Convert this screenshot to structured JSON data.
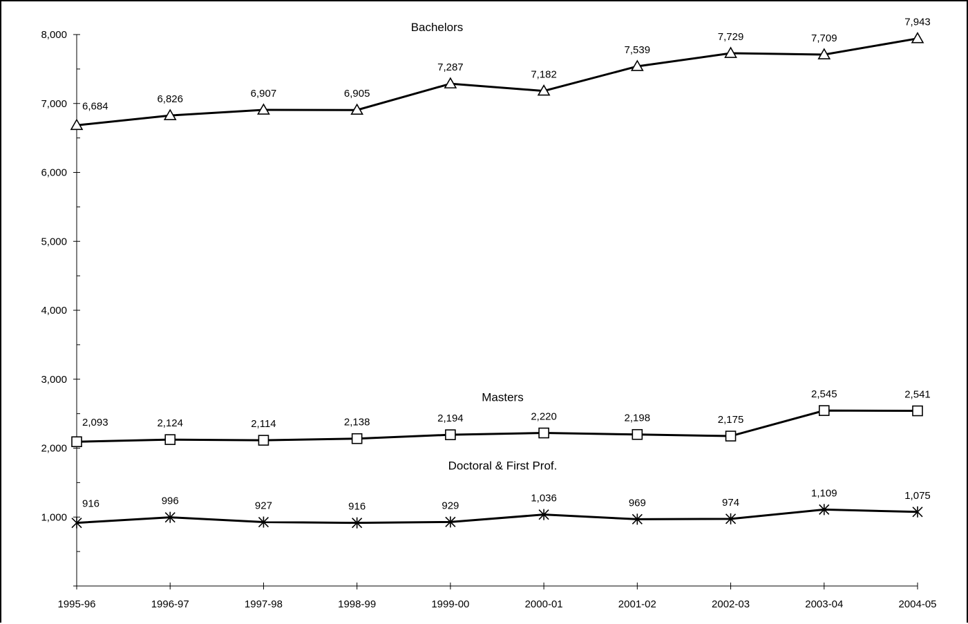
{
  "chart_data": {
    "type": "line",
    "title": "",
    "xlabel": "",
    "ylabel": "",
    "categories": [
      "1995-96",
      "1996-97",
      "1997-98",
      "1998-99",
      "1999-00",
      "2000-01",
      "2001-02",
      "2002-03",
      "2003-04",
      "2004-05"
    ],
    "ylim": [
      0,
      8000
    ],
    "yticks": [
      1000,
      2000,
      3000,
      4000,
      5000,
      6000,
      7000,
      8000
    ],
    "ytick_labels": [
      "1,000",
      "2,000",
      "3,000",
      "4,000",
      "5,000",
      "6,000",
      "7,000",
      "8,000"
    ],
    "grid": false,
    "legend": "none",
    "series": [
      {
        "name": "Bachelors",
        "marker": "triangle",
        "values": [
          6684,
          6826,
          6907,
          6905,
          7287,
          7182,
          7539,
          7729,
          7709,
          7943
        ],
        "labels": [
          "6,684",
          "6,826",
          "6,907",
          "6,905",
          "7,287",
          "7,182",
          "7,539",
          "7,729",
          "7,709",
          "7,943"
        ]
      },
      {
        "name": "Masters",
        "marker": "square",
        "values": [
          2093,
          2124,
          2114,
          2138,
          2194,
          2220,
          2198,
          2175,
          2545,
          2541
        ],
        "labels": [
          "2,093",
          "2,124",
          "2,114",
          "2,138",
          "2,194",
          "2,220",
          "2,198",
          "2,175",
          "2,545",
          "2,541"
        ]
      },
      {
        "name": "Doctoral & First Prof.",
        "marker": "asterisk",
        "values": [
          916,
          996,
          927,
          916,
          929,
          1036,
          969,
          974,
          1109,
          1075
        ],
        "labels": [
          "916",
          "996",
          "927",
          "916",
          "929",
          "1,036",
          "969",
          "974",
          "1,109",
          "1,075"
        ]
      }
    ]
  }
}
